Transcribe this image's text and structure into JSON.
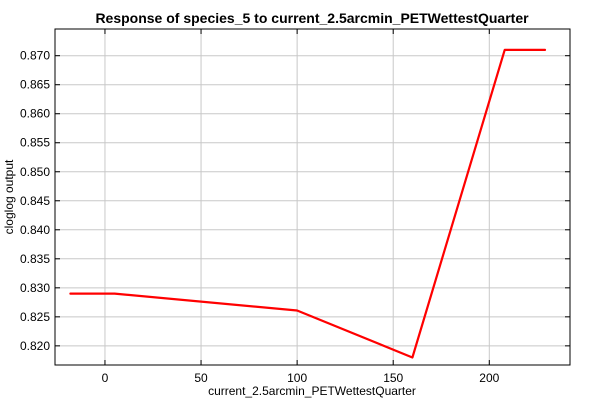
{
  "chart_data": {
    "type": "line",
    "title": "Response of species_5 to current_2.5arcmin_PETWettestQuarter",
    "xlabel": "current_2.5arcmin_PETWettestQuarter",
    "ylabel": "cloglog output",
    "xlim": [
      -26,
      242
    ],
    "ylim": [
      0.8167,
      0.8746
    ],
    "xticks": [
      0,
      50,
      100,
      150,
      200
    ],
    "yticks": [
      0.82,
      0.825,
      0.83,
      0.835,
      0.84,
      0.845,
      0.85,
      0.855,
      0.86,
      0.865,
      0.87
    ],
    "ytick_labels": [
      "0.820",
      "0.825",
      "0.830",
      "0.835",
      "0.840",
      "0.845",
      "0.850",
      "0.855",
      "0.860",
      "0.865",
      "0.870"
    ],
    "grid": true,
    "series": [
      {
        "color": "#ff0000",
        "x": [
          -18,
          5,
          100,
          160,
          208,
          229
        ],
        "y": [
          0.829,
          0.829,
          0.8261,
          0.818,
          0.871,
          0.871
        ]
      }
    ]
  }
}
